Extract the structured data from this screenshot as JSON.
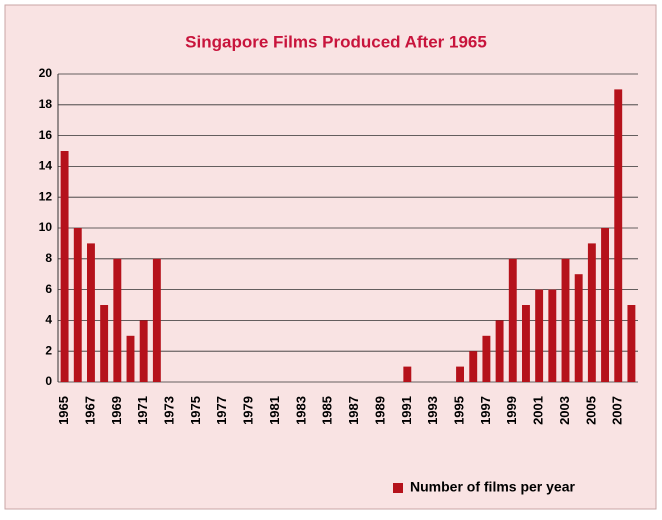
{
  "chart_data": {
    "type": "bar",
    "title": "Singapore Films Produced After 1965",
    "categories": [
      "1965",
      null,
      "1967",
      null,
      "1969",
      null,
      "1971",
      null,
      "1973",
      null,
      "1975",
      null,
      "1977",
      null,
      "1979",
      null,
      "1981",
      null,
      "1983",
      null,
      "1985",
      null,
      "1987",
      null,
      "1989",
      null,
      "1991",
      null,
      "1993",
      null,
      "1995",
      null,
      "1997",
      null,
      "1999",
      null,
      "2001",
      null,
      "2003",
      null,
      "2005",
      null,
      "2007",
      null
    ],
    "series": [
      {
        "name": "Number of films per year",
        "color": "#b5121b",
        "values": [
          15,
          10,
          9,
          5,
          8,
          3,
          4,
          8,
          0,
          0,
          0,
          0,
          0,
          0,
          0,
          0,
          0,
          0,
          0,
          0,
          0,
          0,
          0,
          0,
          0,
          0,
          1,
          0,
          0,
          0,
          1,
          2,
          3,
          4,
          8,
          5,
          6,
          6,
          8,
          7,
          9,
          10,
          19,
          5
        ]
      }
    ],
    "ylim": [
      0,
      20
    ],
    "yticks": [
      0,
      2,
      4,
      6,
      8,
      10,
      12,
      14,
      16,
      18,
      20
    ],
    "grid": true,
    "legend": "bottom-right"
  }
}
